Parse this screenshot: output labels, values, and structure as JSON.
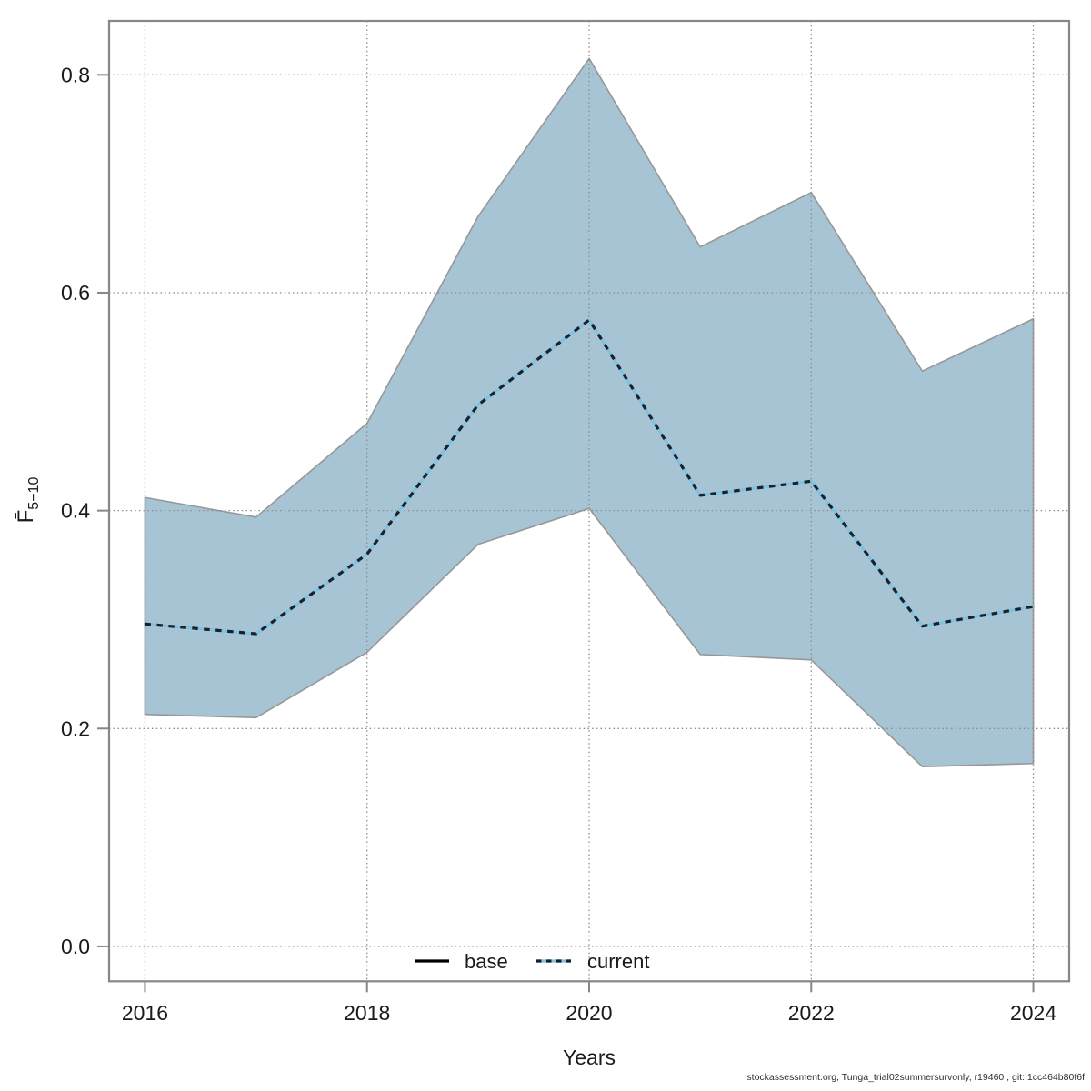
{
  "chart_data": {
    "type": "line",
    "title": "",
    "xlabel": "Years",
    "ylabel_main": "F̄",
    "ylabel_sub": "5−10",
    "x": [
      2016,
      2017,
      2018,
      2019,
      2020,
      2021,
      2022,
      2023,
      2024
    ],
    "series": [
      {
        "name": "current",
        "values": [
          0.296,
          0.287,
          0.36,
          0.497,
          0.575,
          0.414,
          0.427,
          0.294,
          0.312
        ],
        "band_upper": [
          0.412,
          0.394,
          0.48,
          0.67,
          0.815,
          0.642,
          0.692,
          0.528,
          0.576
        ],
        "band_lower": [
          0.213,
          0.21,
          0.27,
          0.369,
          0.402,
          0.268,
          0.263,
          0.165,
          0.168
        ]
      }
    ],
    "legend": [
      {
        "label": "base",
        "line_style": "solid-black"
      },
      {
        "label": "current",
        "line_style": "dotted-blue-black"
      }
    ],
    "legend_position": "bottom-center-inside",
    "grid": true,
    "x_ticks": [
      2016,
      2018,
      2020,
      2022,
      2024
    ],
    "x_tick_labels": [
      "2016",
      "2018",
      "2020",
      "2022",
      "2024"
    ],
    "y_ticks": [
      0.0,
      0.2,
      0.4,
      0.6,
      0.8
    ],
    "y_tick_labels": [
      "0.0",
      "0.2",
      "0.4",
      "0.6",
      "0.8"
    ],
    "xlim": [
      2015.677,
      2024.323
    ],
    "ylim": [
      -0.032,
      0.8495
    ],
    "colors": {
      "band_fill": "#a7c4d5",
      "band_edge": "#979797",
      "current_line_under": "#7fc2e2",
      "current_line_dash": "#16222c",
      "base_line": "#000000",
      "grid": "#8c8c8c",
      "frame": "#878787",
      "tick": "#878787",
      "text": "#1a1a1a"
    }
  },
  "footer": {
    "text": "stockassessment.org, Tunga_trial02summersurvonly, r19460 , git: 1cc464b80f6f"
  }
}
